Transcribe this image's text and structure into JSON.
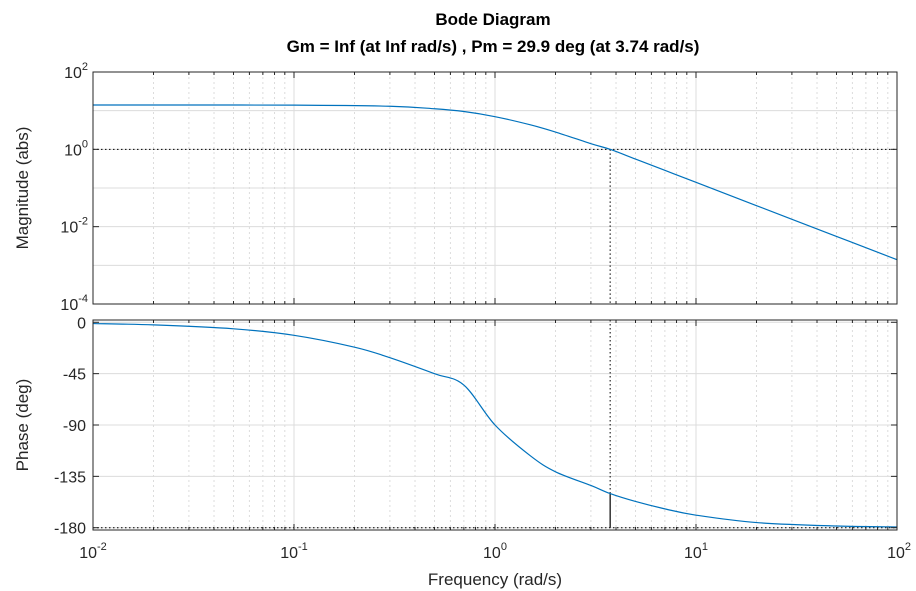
{
  "chart_data": [
    {
      "type": "line",
      "panel": "magnitude",
      "title": "Bode Diagram",
      "subtitle": "Gm = Inf  (at Inf rad/s) ,  Pm = 29.9 deg (at 3.74 rad/s)",
      "xlabel": "Frequency  (rad/s)",
      "ylabel": "Magnitude (abs)",
      "xscale": "log",
      "yscale": "log",
      "xlim": [
        0.01,
        100
      ],
      "ylim": [
        0.0001,
        100
      ],
      "grid": true,
      "y_ticks": [
        {
          "base": "10",
          "exp": "-4",
          "value": 0.0001
        },
        {
          "base": "10",
          "exp": "-2",
          "value": 0.01
        },
        {
          "base": "10",
          "exp": "0",
          "value": 1
        },
        {
          "base": "10",
          "exp": "2",
          "value": 100
        }
      ],
      "series": [
        {
          "color": "#0072bd",
          "x": [
            0.01,
            0.03,
            0.1,
            0.3,
            0.5,
            0.7,
            1.0,
            1.5,
            2.0,
            3.0,
            3.74,
            5.0,
            7.0,
            10.0,
            20.0,
            50.0,
            100.0
          ],
          "y": [
            14.0,
            14.0,
            13.9,
            13.0,
            11.2,
            9.5,
            7.0,
            4.3,
            2.8,
            1.4,
            1.0,
            0.56,
            0.286,
            0.14,
            0.035,
            0.0056,
            0.0014
          ]
        }
      ],
      "reference_lines": [
        {
          "orientation": "horizontal",
          "value": 1,
          "style": "dotted"
        },
        {
          "orientation": "vertical",
          "value": 3.74,
          "style": "dotted",
          "from": 0.0001,
          "to": 1
        }
      ]
    },
    {
      "type": "line",
      "panel": "phase",
      "xlabel": "Frequency  (rad/s)",
      "ylabel": "Phase (deg)",
      "xscale": "log",
      "xlim": [
        0.01,
        100
      ],
      "ylim": [
        -182,
        2
      ],
      "grid": true,
      "y_ticks": [
        "0",
        "-45",
        "-90",
        "-135",
        "-180"
      ],
      "x_ticks": [
        {
          "base": "10",
          "exp": "-2",
          "value": 0.01
        },
        {
          "base": "10",
          "exp": "-1",
          "value": 0.1
        },
        {
          "base": "10",
          "exp": "0",
          "value": 1
        },
        {
          "base": "10",
          "exp": "1",
          "value": 10
        },
        {
          "base": "10",
          "exp": "2",
          "value": 100
        }
      ],
      "series": [
        {
          "color": "#0072bd",
          "x": [
            0.01,
            0.02,
            0.05,
            0.1,
            0.2,
            0.3,
            0.5,
            0.7,
            1.0,
            1.5,
            2.0,
            3.0,
            3.74,
            5.0,
            7.0,
            10.0,
            20.0,
            50.0,
            100.0
          ],
          "y": [
            -1.1,
            -2.3,
            -5.7,
            -11.4,
            -21.8,
            -31.0,
            -45.0,
            -55.0,
            -90.0,
            -117.0,
            -131.0,
            -143.0,
            -150.1,
            -157.0,
            -163.5,
            -169.0,
            -175.5,
            -178.5,
            -179.3
          ]
        }
      ],
      "reference_lines": [
        {
          "orientation": "horizontal",
          "value": -180,
          "style": "dotted"
        },
        {
          "orientation": "vertical",
          "value": 3.74,
          "style": "dotted",
          "from": 2,
          "to": -150.1
        },
        {
          "orientation": "vertical",
          "value": 3.74,
          "style": "solid",
          "from": -180,
          "to": -150.1
        }
      ]
    }
  ]
}
